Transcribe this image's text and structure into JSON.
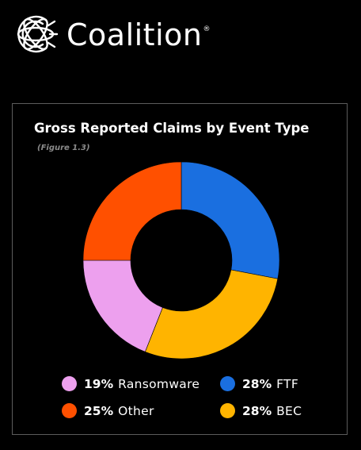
{
  "brand": {
    "logo_icon": "coalition-globe-icon",
    "name": "Coalition",
    "registered_mark": "®"
  },
  "card": {
    "title": "Gross Reported Claims by Event Type",
    "subtitle": "(Figure 1.3)"
  },
  "chart_data": {
    "type": "pie",
    "donut": true,
    "title": "Gross Reported Claims by Event Type",
    "subtitle": "(Figure 1.3)",
    "unit": "%",
    "slices": [
      {
        "label": "FTF",
        "value": 28,
        "display": "28%",
        "color": "#1a6fe0"
      },
      {
        "label": "BEC",
        "value": 28,
        "display": "28%",
        "color": "#ffb400"
      },
      {
        "label": "Ransomware",
        "value": 19,
        "display": "19%",
        "color": "#eda0ee"
      },
      {
        "label": "Other",
        "value": 25,
        "display": "25%",
        "color": "#ff5000"
      }
    ],
    "legend_placement": "bottom",
    "legend_columns": [
      [
        "Ransomware",
        "Other"
      ],
      [
        "FTF",
        "BEC"
      ]
    ]
  }
}
